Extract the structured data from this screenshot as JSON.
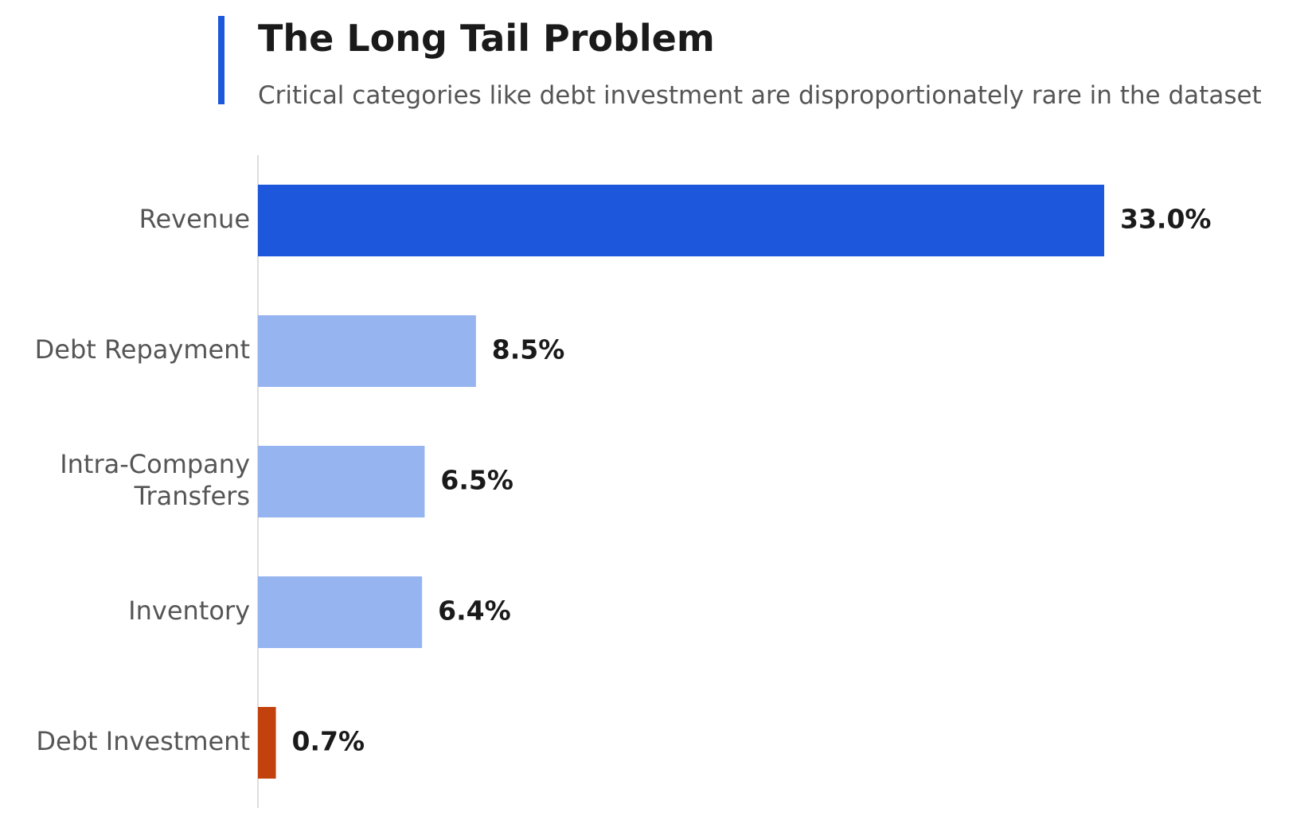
{
  "header": {
    "title": "The Long Tail Problem",
    "subtitle": "Critical categories like debt investment are disproportionately rare in the dataset"
  },
  "colors": {
    "accent": "#1c57dc",
    "highlight": "#1c57dc",
    "muted": "#95b4f0",
    "alert": "#c2410c",
    "axis": "#dddddd"
  },
  "chart_data": {
    "type": "bar",
    "orientation": "horizontal",
    "title": "The Long Tail Problem",
    "subtitle": "Critical categories like debt investment are disproportionately rare in the dataset",
    "categories": [
      [
        "Revenue"
      ],
      [
        "Debt Repayment"
      ],
      [
        "Intra-Company",
        "Transfers"
      ],
      [
        "Inventory"
      ],
      [
        "Debt Investment"
      ]
    ],
    "values": [
      33.0,
      8.5,
      6.5,
      6.4,
      0.7
    ],
    "value_labels": [
      "33.0%",
      "8.5%",
      "6.5%",
      "6.4%",
      "0.7%"
    ],
    "bar_styles": [
      "highlight",
      "muted",
      "muted",
      "muted",
      "alert"
    ],
    "xlim": [
      0,
      33.0
    ],
    "grid": false,
    "legend": "none"
  }
}
